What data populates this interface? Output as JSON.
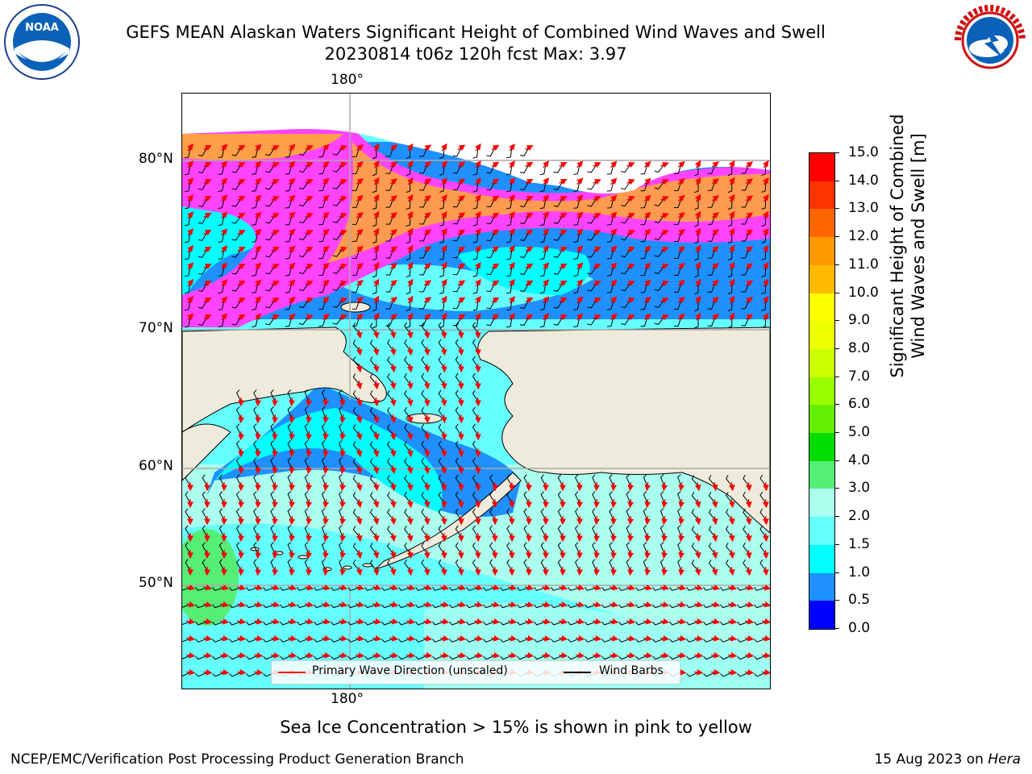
{
  "header": {
    "title_line1": "GEFS MEAN Alaskan Waters Significant Height of Combined Wind Waves and Swell",
    "title_line2": "20230814 t06z 120h fcst   Max: 3.97"
  },
  "logos": {
    "left": "NOAA",
    "right": "NATIONAL WEATHER SERVICE"
  },
  "map": {
    "lon_label_top": "180°",
    "lon_label_bottom": "180°",
    "lat_labels": [
      "80°N",
      "70°N",
      "60°N",
      "50°N"
    ],
    "legend": {
      "wave_direction": "Primary Wave Direction (unscaled)",
      "wind_barbs": "Wind Barbs"
    }
  },
  "colorbar": {
    "label": "Significant Height of Combined Wind Waves and Swell [m]",
    "label_line1": "Significant Height of Combined",
    "label_line2": "Wind Waves and Swell [m]",
    "ticks": [
      "15.0",
      "14.0",
      "13.0",
      "12.0",
      "11.0",
      "10.0",
      "9.0",
      "8.0",
      "7.0",
      "6.0",
      "5.0",
      "4.0",
      "3.0",
      "2.0",
      "1.5",
      "1.0",
      "0.5",
      "0.0"
    ],
    "colors": [
      "#ff0000",
      "#ff3300",
      "#ff6600",
      "#ff9900",
      "#ffbb00",
      "#ffff00",
      "#eeff00",
      "#ccff00",
      "#99ff00",
      "#66ee00",
      "#00dd00",
      "#55ee77",
      "#aaffee",
      "#66ffff",
      "#00ffff",
      "#1e90ff",
      "#0000ff"
    ]
  },
  "note": "Sea Ice Concentration > 15% is shown in pink to yellow",
  "footer": {
    "left": "NCEP/EMC/Verification Post Processing Product Generation Branch",
    "right_date": "15 Aug 2023 on ",
    "right_host": "Hera"
  }
}
